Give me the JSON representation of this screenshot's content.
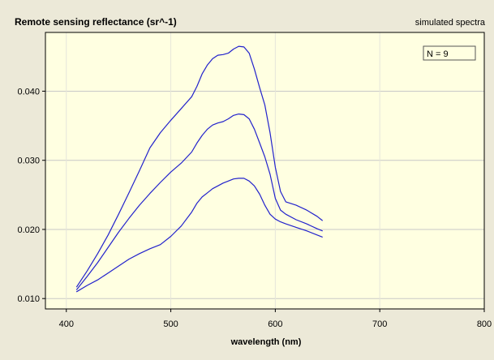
{
  "chart_data": {
    "type": "line",
    "title": "Remote sensing reflectance (sr^-1)",
    "subtitle": "simulated spectra",
    "xlabel": "wavelength (nm)",
    "ylabel": "",
    "xlim": [
      380,
      800
    ],
    "ylim": [
      0.0085,
      0.0485
    ],
    "xticks": [
      400,
      500,
      600,
      700,
      800
    ],
    "xtick_labels": [
      "400",
      "500",
      "600",
      "700",
      "800"
    ],
    "yticks": [
      0.01,
      0.02,
      0.03,
      0.04
    ],
    "ytick_labels": [
      "0.010",
      "0.020",
      "0.030",
      "0.040"
    ],
    "grid": true,
    "legend": {
      "text": "N = 9",
      "position": "top-right"
    },
    "colors": {
      "plot_bg": "#FFFFE1",
      "line": "#2222CC",
      "grid": "#C8C8C8",
      "frame_bg": "#ECE9D8"
    },
    "series": [
      {
        "x": [
          410,
          420,
          430,
          440,
          450,
          460,
          470,
          480,
          490,
          500,
          510,
          520,
          525,
          530,
          535,
          540,
          545,
          550,
          555,
          560,
          565,
          570,
          575,
          580,
          585,
          590,
          595,
          600,
          605,
          610,
          620,
          630,
          640,
          645
        ],
        "y": [
          0.0117,
          0.014,
          0.0165,
          0.0192,
          0.0222,
          0.0253,
          0.0285,
          0.0318,
          0.034,
          0.0358,
          0.0375,
          0.0392,
          0.0407,
          0.0425,
          0.0438,
          0.0447,
          0.0452,
          0.0453,
          0.0455,
          0.0461,
          0.0465,
          0.0464,
          0.0455,
          0.0432,
          0.0405,
          0.038,
          0.034,
          0.029,
          0.0255,
          0.024,
          0.0235,
          0.0228,
          0.0219,
          0.0213
        ]
      },
      {
        "x": [
          410,
          420,
          430,
          440,
          450,
          460,
          470,
          480,
          490,
          500,
          510,
          520,
          525,
          530,
          535,
          540,
          545,
          550,
          555,
          560,
          565,
          570,
          575,
          580,
          585,
          590,
          595,
          600,
          605,
          610,
          620,
          630,
          640,
          645
        ],
        "y": [
          0.0113,
          0.0132,
          0.0152,
          0.0174,
          0.0196,
          0.0216,
          0.0235,
          0.0252,
          0.0268,
          0.0283,
          0.0296,
          0.0312,
          0.0325,
          0.0336,
          0.0345,
          0.0351,
          0.0354,
          0.0356,
          0.036,
          0.0365,
          0.0367,
          0.0366,
          0.036,
          0.0345,
          0.0325,
          0.0305,
          0.028,
          0.0245,
          0.0228,
          0.0222,
          0.0214,
          0.0208,
          0.0201,
          0.0198
        ]
      },
      {
        "x": [
          410,
          420,
          430,
          440,
          450,
          460,
          470,
          480,
          490,
          500,
          510,
          520,
          525,
          530,
          535,
          540,
          545,
          550,
          555,
          560,
          565,
          570,
          575,
          580,
          585,
          590,
          595,
          600,
          605,
          610,
          620,
          630,
          640,
          645
        ],
        "y": [
          0.011,
          0.0119,
          0.0127,
          0.0137,
          0.0147,
          0.0157,
          0.0165,
          0.0172,
          0.0178,
          0.019,
          0.0205,
          0.0225,
          0.0238,
          0.0247,
          0.0253,
          0.0259,
          0.0263,
          0.0267,
          0.027,
          0.0273,
          0.0274,
          0.0274,
          0.027,
          0.0263,
          0.0251,
          0.0235,
          0.0222,
          0.0215,
          0.0211,
          0.0208,
          0.0203,
          0.0198,
          0.0192,
          0.0189
        ]
      }
    ]
  }
}
